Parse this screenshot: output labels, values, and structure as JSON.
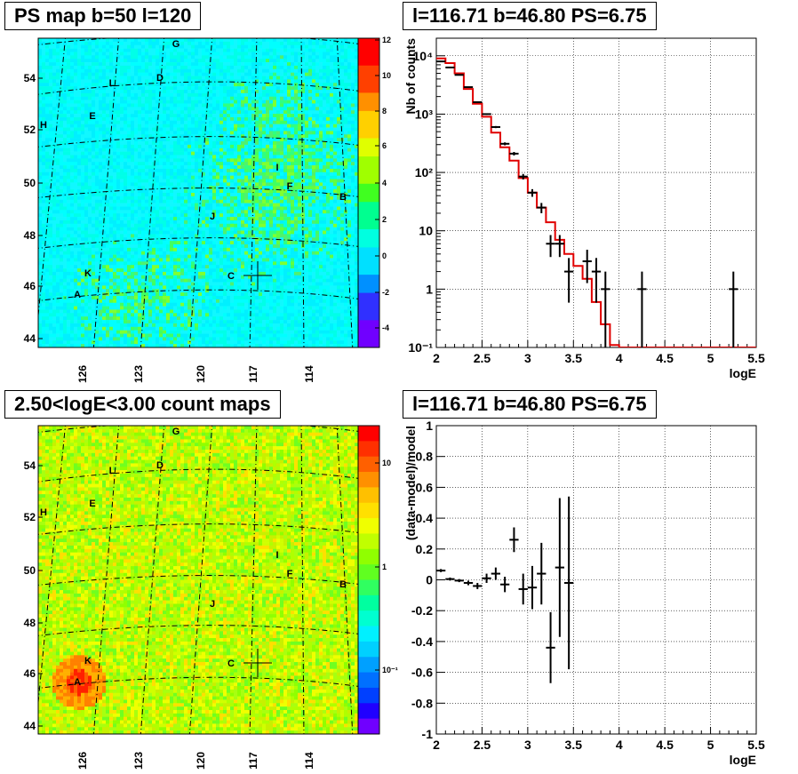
{
  "panels": {
    "tl_title": "PS map b=50 l=120",
    "bl_title": "2.50<logE<3.00 count maps",
    "tr_title": "l=116.71 b=46.80 PS=6.75",
    "br_title": "l=116.71 b=46.80 PS=6.75"
  },
  "sources": [
    "A",
    "B",
    "C",
    "D",
    "E",
    "F",
    "G",
    "H",
    "I",
    "J",
    "K",
    "L"
  ],
  "chart_data": [
    {
      "type": "heatmap",
      "title": "PS map b=50 l=120",
      "xlabel": "",
      "ylabel": "",
      "x_ticks": [
        "126",
        "123",
        "120",
        "117",
        "114"
      ],
      "y_ticks": [
        "54",
        "52",
        "50",
        "48",
        "46",
        "44"
      ],
      "colorbar_ticks": [
        "12",
        "10",
        "8",
        "6",
        "4",
        "2",
        "0",
        "-2",
        "-4"
      ],
      "colorbar_range": [
        -5,
        12
      ],
      "colors": [
        "#7000ff",
        "#3030ff",
        "#0090ff",
        "#00e0ff",
        "#00ffe0",
        "#00ff90",
        "#40ff20",
        "#a0ff00",
        "#e0ff00",
        "#ffd000",
        "#ff9000",
        "#ff4000",
        "#ff0000"
      ]
    },
    {
      "type": "heatmap",
      "title": "2.50<logE<3.00 count maps",
      "xlabel": "",
      "ylabel": "",
      "x_ticks": [
        "126",
        "123",
        "120",
        "117",
        "114"
      ],
      "y_ticks": [
        "54",
        "52",
        "50",
        "48",
        "46",
        "44"
      ],
      "colorbar_ticks": [
        "10",
        "1",
        "10⁻¹"
      ],
      "log_scale": true
    },
    {
      "type": "line",
      "title": "l=116.71 b=46.80 PS=6.75",
      "xlabel": "logE",
      "ylabel": "Nb of counts",
      "xlim": [
        2,
        5.5
      ],
      "ylim": [
        0.1,
        20000
      ],
      "log_y": true,
      "grid": true,
      "x_ticks": [
        "2",
        "2.5",
        "3",
        "3.5",
        "4",
        "4.5",
        "5",
        "5.5"
      ],
      "y_ticks": [
        "10⁻¹",
        "1",
        "10",
        "10²",
        "10³",
        "10⁴"
      ],
      "series": [
        {
          "kind": "model-histogram",
          "color": "#e00000",
          "edges": [
            2,
            2.1,
            2.2,
            2.3,
            2.4,
            2.5,
            2.6,
            2.7,
            2.8,
            2.9,
            3.0,
            3.1,
            3.2,
            3.3,
            3.4,
            3.5,
            3.6,
            3.7,
            3.8,
            3.9,
            4.0,
            5.5
          ],
          "values": [
            9000,
            7500,
            5000,
            2700,
            1500,
            900,
            480,
            270,
            160,
            80,
            45,
            25,
            14,
            7,
            4,
            2.5,
            1.5,
            0.6,
            0.25,
            0.11,
            0.1
          ]
        },
        {
          "kind": "data-points",
          "color": "#000000",
          "points": [
            {
              "x": 2.05,
              "y": 8000
            },
            {
              "x": 2.15,
              "y": 6300
            },
            {
              "x": 2.25,
              "y": 4700
            },
            {
              "x": 2.35,
              "y": 2900
            },
            {
              "x": 2.45,
              "y": 1600
            },
            {
              "x": 2.55,
              "y": 1000
            },
            {
              "x": 2.65,
              "y": 600
            },
            {
              "x": 2.75,
              "y": 310
            },
            {
              "x": 2.85,
              "y": 210
            },
            {
              "x": 2.95,
              "y": 85
            },
            {
              "x": 3.05,
              "y": 45
            },
            {
              "x": 3.15,
              "y": 25
            },
            {
              "x": 3.25,
              "y": 6
            },
            {
              "x": 3.35,
              "y": 6
            },
            {
              "x": 3.45,
              "y": 2
            },
            {
              "x": 3.65,
              "y": 3
            },
            {
              "x": 3.75,
              "y": 2
            },
            {
              "x": 3.85,
              "y": 1
            },
            {
              "x": 4.25,
              "y": 1
            },
            {
              "x": 5.25,
              "y": 1
            }
          ]
        }
      ]
    },
    {
      "type": "scatter",
      "title": "l=116.71 b=46.80 PS=6.75",
      "xlabel": "logE",
      "ylabel": "(data-model)/model",
      "xlim": [
        2,
        5.5
      ],
      "ylim": [
        -1,
        1
      ],
      "grid": true,
      "x_ticks": [
        "2",
        "2.5",
        "3",
        "3.5",
        "4",
        "4.5",
        "5",
        "5.5"
      ],
      "y_ticks": [
        "1",
        "0.8",
        "0.6",
        "0.4",
        "0.2",
        "0",
        "-0.2",
        "-0.4",
        "-0.6",
        "-0.8",
        "-1"
      ],
      "points": [
        {
          "x": 2.05,
          "y": 0.06,
          "err": 0.01
        },
        {
          "x": 2.15,
          "y": 0.005,
          "err": 0.01
        },
        {
          "x": 2.25,
          "y": -0.005,
          "err": 0.01
        },
        {
          "x": 2.35,
          "y": -0.02,
          "err": 0.015
        },
        {
          "x": 2.45,
          "y": -0.04,
          "err": 0.02
        },
        {
          "x": 2.55,
          "y": 0.01,
          "err": 0.03
        },
        {
          "x": 2.65,
          "y": 0.04,
          "err": 0.04
        },
        {
          "x": 2.75,
          "y": -0.03,
          "err": 0.05
        },
        {
          "x": 2.85,
          "y": 0.26,
          "err": 0.08
        },
        {
          "x": 2.95,
          "y": -0.06,
          "err": 0.1
        },
        {
          "x": 3.05,
          "y": -0.05,
          "err": 0.14
        },
        {
          "x": 3.15,
          "y": 0.04,
          "err": 0.2
        },
        {
          "x": 3.25,
          "y": -0.44,
          "err": 0.23
        },
        {
          "x": 3.35,
          "y": 0.08,
          "err": 0.45
        },
        {
          "x": 3.45,
          "y": -0.02,
          "err": 0.56
        }
      ]
    }
  ]
}
